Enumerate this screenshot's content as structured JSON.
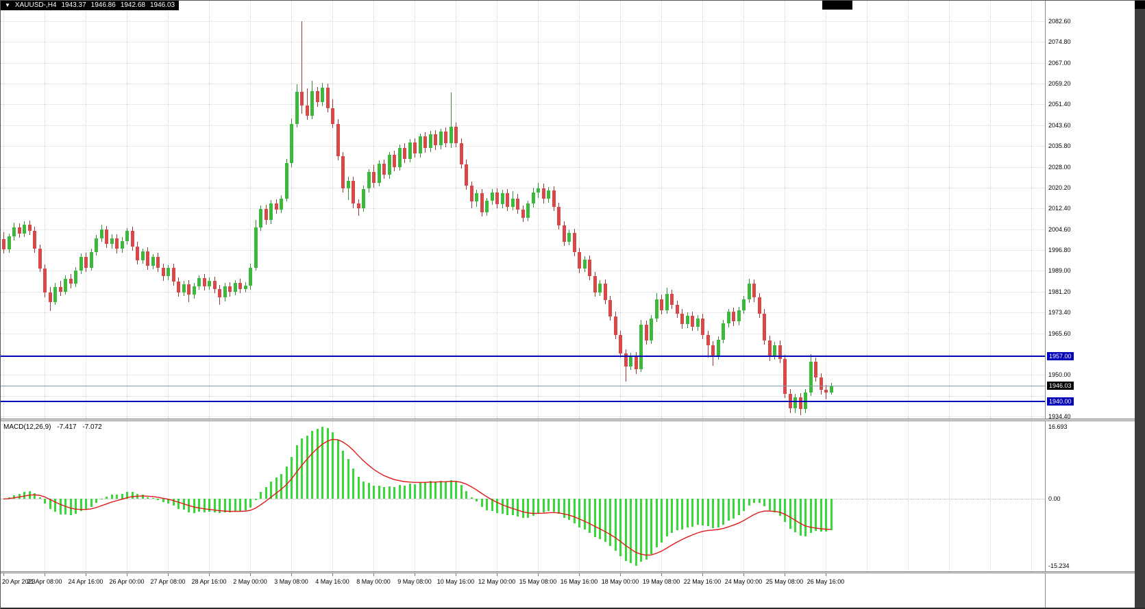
{
  "info_bar": {
    "symbol_period": "XAUUSD-,H4",
    "open": "1943.37",
    "high": "1946.86",
    "low": "1942.68",
    "close": "1946.03"
  },
  "colors": {
    "bull": "#3CB83C",
    "bull_wick": "#2E8F2E",
    "bear": "#D84848",
    "bear_wick": "#A03434",
    "histogram": "#39D839",
    "signal_line": "#E01818",
    "level_line": "#0000BB",
    "current_price_line": "#8899AA",
    "current_tag_bg": "#000000",
    "grid": "#D6D6D6"
  },
  "chart_data": {
    "type": "candlestick",
    "symbol": "XAUUSD-",
    "timeframe": "H4",
    "price_axis": {
      "ticks": [
        "2082.60",
        "2074.80",
        "2067.00",
        "2059.20",
        "2051.40",
        "2043.60",
        "2035.80",
        "2028.00",
        "2020.20",
        "2012.40",
        "2004.60",
        "1996.80",
        "1989.00",
        "1981.20",
        "1973.40",
        "1965.60",
        "1957.80",
        "1950.00",
        "1942.20",
        "1934.40"
      ]
    },
    "levels": [
      {
        "price": 1957.0,
        "label": "1957.00"
      },
      {
        "price": 1940.0,
        "label": "1940.00"
      }
    ],
    "current_price": {
      "price": 1946.03,
      "label": "1946.03"
    },
    "time_axis": {
      "labels": [
        "20 Apr 2023",
        "21 Apr 08:00",
        "24 Apr 16:00",
        "26 Apr 00:00",
        "27 Apr 08:00",
        "28 Apr 16:00",
        "2 May 00:00",
        "3 May 08:00",
        "4 May 16:00",
        "8 May 00:00",
        "9 May 08:00",
        "10 May 16:00",
        "12 May 00:00",
        "15 May 08:00",
        "16 May 16:00",
        "18 May 00:00",
        "19 May 08:00",
        "22 May 16:00",
        "24 May 00:00",
        "25 May 08:00",
        "26 May 16:00"
      ],
      "bars_per_label": 8
    },
    "ohlc": [
      [
        2001.0,
        2003.5,
        1995.5,
        1997.0
      ],
      [
        1997.0,
        2003.0,
        1995.8,
        2002.0
      ],
      [
        2002.0,
        2007.0,
        2000.5,
        2005.2
      ],
      [
        2005.2,
        2006.8,
        2001.5,
        2003.0
      ],
      [
        2003.0,
        2007.6,
        2001.8,
        2006.2
      ],
      [
        2006.2,
        2007.8,
        2002.5,
        2004.0
      ],
      [
        2004.0,
        2005.5,
        1995.8,
        1997.2
      ],
      [
        1997.2,
        1998.8,
        1988.5,
        1990.0
      ],
      [
        1990.0,
        1991.5,
        1979.2,
        1981.0
      ],
      [
        1981.0,
        1983.0,
        1974.0,
        1977.4
      ],
      [
        1977.4,
        1984.6,
        1976.2,
        1983.0
      ],
      [
        1983.0,
        1985.2,
        1979.6,
        1981.2
      ],
      [
        1981.2,
        1987.4,
        1980.0,
        1986.0
      ],
      [
        1986.0,
        1987.8,
        1982.4,
        1984.2
      ],
      [
        1984.2,
        1990.4,
        1983.0,
        1989.0
      ],
      [
        1989.0,
        1995.6,
        1987.8,
        1994.2
      ],
      [
        1994.2,
        1995.8,
        1988.6,
        1990.2
      ],
      [
        1990.2,
        1997.2,
        1989.0,
        1996.0
      ],
      [
        1996.0,
        2002.4,
        1994.8,
        2001.2
      ],
      [
        2001.2,
        2006.2,
        1999.8,
        2004.4
      ],
      [
        2004.4,
        2005.8,
        1997.6,
        1999.0
      ],
      [
        1999.0,
        2002.6,
        1997.4,
        2001.2
      ],
      [
        2001.2,
        2002.8,
        1995.6,
        1997.2
      ],
      [
        1997.2,
        2001.6,
        1995.8,
        2000.2
      ],
      [
        2000.2,
        2005.0,
        1998.8,
        2004.0
      ],
      [
        2004.0,
        2005.6,
        1996.6,
        1998.2
      ],
      [
        1998.2,
        1999.8,
        1991.4,
        1993.0
      ],
      [
        1993.0,
        1997.2,
        1991.6,
        1996.2
      ],
      [
        1996.2,
        1997.8,
        1989.4,
        1991.0
      ],
      [
        1991.0,
        1995.4,
        1989.6,
        1994.2
      ],
      [
        1994.2,
        1995.8,
        1988.6,
        1990.2
      ],
      [
        1990.2,
        1991.8,
        1985.2,
        1987.0
      ],
      [
        1987.0,
        1991.2,
        1985.6,
        1990.2
      ],
      [
        1990.2,
        1991.6,
        1983.4,
        1985.0
      ],
      [
        1985.0,
        1986.6,
        1979.4,
        1981.0
      ],
      [
        1981.0,
        1985.2,
        1979.6,
        1984.0
      ],
      [
        1984.0,
        1985.4,
        1977.2,
        1980.0
      ],
      [
        1980.0,
        1984.4,
        1978.6,
        1983.2
      ],
      [
        1983.2,
        1987.4,
        1981.8,
        1986.2
      ],
      [
        1986.2,
        1987.8,
        1981.6,
        1983.2
      ],
      [
        1983.2,
        1986.6,
        1981.8,
        1985.2
      ],
      [
        1985.2,
        1986.8,
        1980.6,
        1982.2
      ],
      [
        1982.2,
        1983.8,
        1976.2,
        1979.0
      ],
      [
        1979.0,
        1984.4,
        1977.6,
        1983.2
      ],
      [
        1983.2,
        1984.8,
        1979.4,
        1981.2
      ],
      [
        1981.2,
        1985.6,
        1979.8,
        1984.4
      ],
      [
        1984.4,
        1986.0,
        1980.6,
        1982.2
      ],
      [
        1982.2,
        1984.8,
        1980.8,
        1983.4
      ],
      [
        1983.4,
        1991.6,
        1982.0,
        1990.2
      ],
      [
        1990.2,
        2008.0,
        1989.0,
        2005.4
      ],
      [
        2005.4,
        2013.6,
        2004.0,
        2012.2
      ],
      [
        2012.2,
        2013.8,
        2006.4,
        2008.0
      ],
      [
        2008.0,
        2015.6,
        2006.6,
        2014.2
      ],
      [
        2014.2,
        2015.8,
        2010.4,
        2012.0
      ],
      [
        2012.0,
        2017.4,
        2010.6,
        2016.2
      ],
      [
        2016.2,
        2031.0,
        2015.0,
        2029.4
      ],
      [
        2029.4,
        2046.0,
        2028.0,
        2044.2
      ],
      [
        2044.2,
        2059.0,
        2042.8,
        2056.2
      ],
      [
        2056.2,
        2082.6,
        2048.0,
        2051.0
      ],
      [
        2051.0,
        2057.4,
        2045.6,
        2047.2
      ],
      [
        2047.2,
        2060.2,
        2045.8,
        2056.4
      ],
      [
        2056.4,
        2058.0,
        2050.6,
        2052.2
      ],
      [
        2052.2,
        2059.4,
        2050.8,
        2057.6
      ],
      [
        2057.6,
        2059.2,
        2048.4,
        2050.0
      ],
      [
        2050.0,
        2053.4,
        2042.6,
        2044.2
      ],
      [
        2044.2,
        2045.8,
        2030.4,
        2032.0
      ],
      [
        2032.0,
        2033.6,
        2018.4,
        2020.0
      ],
      [
        2020.0,
        2024.4,
        2015.6,
        2022.8
      ],
      [
        2022.8,
        2024.4,
        2012.6,
        2014.2
      ],
      [
        2014.2,
        2015.8,
        2009.6,
        2012.6
      ],
      [
        2012.6,
        2021.0,
        2011.2,
        2019.8
      ],
      [
        2019.8,
        2027.2,
        2018.4,
        2026.0
      ],
      [
        2026.0,
        2028.6,
        2020.2,
        2022.0
      ],
      [
        2022.0,
        2030.4,
        2020.6,
        2029.2
      ],
      [
        2029.2,
        2030.8,
        2023.4,
        2025.0
      ],
      [
        2025.0,
        2033.6,
        2023.6,
        2032.4
      ],
      [
        2032.4,
        2034.0,
        2026.4,
        2028.0
      ],
      [
        2028.0,
        2036.4,
        2026.6,
        2035.2
      ],
      [
        2035.2,
        2036.8,
        2029.4,
        2031.0
      ],
      [
        2031.0,
        2038.4,
        2029.6,
        2037.2
      ],
      [
        2037.2,
        2038.8,
        2031.4,
        2033.0
      ],
      [
        2033.0,
        2040.6,
        2031.6,
        2039.4
      ],
      [
        2039.4,
        2041.0,
        2033.4,
        2035.0
      ],
      [
        2035.0,
        2041.4,
        2033.6,
        2040.2
      ],
      [
        2040.2,
        2041.8,
        2034.4,
        2036.0
      ],
      [
        2036.0,
        2042.4,
        2034.6,
        2041.2
      ],
      [
        2041.2,
        2042.8,
        2035.4,
        2037.0
      ],
      [
        2037.0,
        2056.0,
        2035.2,
        2043.0
      ],
      [
        2043.0,
        2044.6,
        2035.4,
        2037.0
      ],
      [
        2037.0,
        2038.6,
        2027.4,
        2029.0
      ],
      [
        2029.0,
        2030.6,
        2019.4,
        2021.0
      ],
      [
        2021.0,
        2022.6,
        2012.4,
        2015.0
      ],
      [
        2015.0,
        2019.4,
        2013.0,
        2018.2
      ],
      [
        2018.2,
        2019.8,
        2009.4,
        2011.0
      ],
      [
        2011.0,
        2016.4,
        2009.6,
        2015.2
      ],
      [
        2015.2,
        2019.6,
        2013.8,
        2018.4
      ],
      [
        2018.4,
        2020.0,
        2012.4,
        2014.0
      ],
      [
        2014.0,
        2019.4,
        2012.6,
        2018.2
      ],
      [
        2018.2,
        2019.8,
        2011.4,
        2013.0
      ],
      [
        2013.0,
        2019.0,
        2011.6,
        2016.2
      ],
      [
        2016.2,
        2017.8,
        2010.4,
        2012.0
      ],
      [
        2012.0,
        2013.6,
        2007.4,
        2009.0
      ],
      [
        2009.0,
        2015.4,
        2007.6,
        2014.2
      ],
      [
        2014.2,
        2020.2,
        2012.8,
        2018.4
      ],
      [
        2018.4,
        2022.0,
        2016.4,
        2020.0
      ],
      [
        2020.0,
        2021.6,
        2014.4,
        2016.0
      ],
      [
        2016.0,
        2020.4,
        2014.6,
        2019.2
      ],
      [
        2019.2,
        2020.8,
        2011.4,
        2013.0
      ],
      [
        2013.0,
        2014.6,
        2004.4,
        2006.0
      ],
      [
        2006.0,
        2007.6,
        1998.4,
        2000.0
      ],
      [
        2000.0,
        2004.4,
        1998.6,
        2003.2
      ],
      [
        2003.2,
        2004.8,
        1994.4,
        1996.0
      ],
      [
        1996.0,
        1997.6,
        1988.2,
        1990.0
      ],
      [
        1990.0,
        1994.4,
        1988.6,
        1993.2
      ],
      [
        1993.2,
        1994.8,
        1985.4,
        1987.0
      ],
      [
        1987.0,
        1988.6,
        1979.4,
        1981.0
      ],
      [
        1981.0,
        1985.4,
        1979.6,
        1984.2
      ],
      [
        1984.2,
        1985.8,
        1976.4,
        1978.0
      ],
      [
        1978.0,
        1979.6,
        1970.4,
        1972.0
      ],
      [
        1972.0,
        1973.6,
        1963.4,
        1965.0
      ],
      [
        1965.0,
        1966.6,
        1956.4,
        1958.0
      ],
      [
        1958.0,
        1959.6,
        1947.6,
        1953.2
      ],
      [
        1953.2,
        1958.4,
        1951.8,
        1957.0
      ],
      [
        1957.0,
        1958.6,
        1950.4,
        1952.0
      ],
      [
        1952.0,
        1970.6,
        1951.0,
        1968.8
      ],
      [
        1968.8,
        1970.4,
        1961.4,
        1963.0
      ],
      [
        1963.0,
        1972.4,
        1961.6,
        1971.2
      ],
      [
        1971.2,
        1980.6,
        1969.8,
        1978.4
      ],
      [
        1978.4,
        1980.0,
        1972.6,
        1974.2
      ],
      [
        1974.2,
        1982.6,
        1972.8,
        1980.4
      ],
      [
        1980.4,
        1982.0,
        1974.6,
        1976.2
      ],
      [
        1976.2,
        1977.8,
        1971.4,
        1973.0
      ],
      [
        1973.0,
        1974.6,
        1967.4,
        1969.0
      ],
      [
        1969.0,
        1973.4,
        1967.6,
        1972.2
      ],
      [
        1972.2,
        1973.8,
        1966.4,
        1968.0
      ],
      [
        1968.0,
        1972.4,
        1966.6,
        1971.2
      ],
      [
        1971.2,
        1972.8,
        1963.4,
        1965.0
      ],
      [
        1965.0,
        1966.6,
        1956.4,
        1961.0
      ],
      [
        1961.0,
        1962.6,
        1953.4,
        1957.0
      ],
      [
        1957.0,
        1964.4,
        1955.6,
        1963.2
      ],
      [
        1963.2,
        1970.6,
        1961.8,
        1969.4
      ],
      [
        1969.4,
        1974.8,
        1967.9,
        1973.6
      ],
      [
        1973.6,
        1975.2,
        1968.4,
        1970.0
      ],
      [
        1970.0,
        1975.4,
        1968.6,
        1974.2
      ],
      [
        1974.2,
        1979.6,
        1972.8,
        1978.4
      ],
      [
        1978.4,
        1986.0,
        1977.0,
        1984.2
      ],
      [
        1984.2,
        1985.8,
        1977.4,
        1979.0
      ],
      [
        1979.0,
        1980.6,
        1971.4,
        1973.0
      ],
      [
        1973.0,
        1974.6,
        1961.4,
        1963.0
      ],
      [
        1963.0,
        1964.6,
        1955.2,
        1957.0
      ],
      [
        1957.0,
        1962.4,
        1955.6,
        1961.2
      ],
      [
        1961.2,
        1962.8,
        1954.4,
        1956.0
      ],
      [
        1956.0,
        1957.6,
        1941.4,
        1943.0
      ],
      [
        1943.0,
        1944.6,
        1935.6,
        1937.4
      ],
      [
        1937.4,
        1942.8,
        1935.8,
        1941.6
      ],
      [
        1941.6,
        1943.2,
        1934.8,
        1937.2
      ],
      [
        1937.2,
        1944.6,
        1935.8,
        1943.4
      ],
      [
        1943.4,
        1957.8,
        1942.2,
        1955.0
      ],
      [
        1955.0,
        1956.6,
        1947.4,
        1949.0
      ],
      [
        1949.0,
        1950.6,
        1942.6,
        1944.4
      ],
      [
        1944.4,
        1946.2,
        1940.8,
        1943.4
      ],
      [
        1943.4,
        1946.9,
        1942.7,
        1946.0
      ]
    ],
    "macd": {
      "label": "MACD(12,26,9)",
      "main_value": "-7.417",
      "signal_value": "-7.072",
      "params": [
        12,
        26,
        9
      ],
      "axis_labels": [
        "16.693",
        "0.00",
        "-15.234"
      ]
    }
  }
}
